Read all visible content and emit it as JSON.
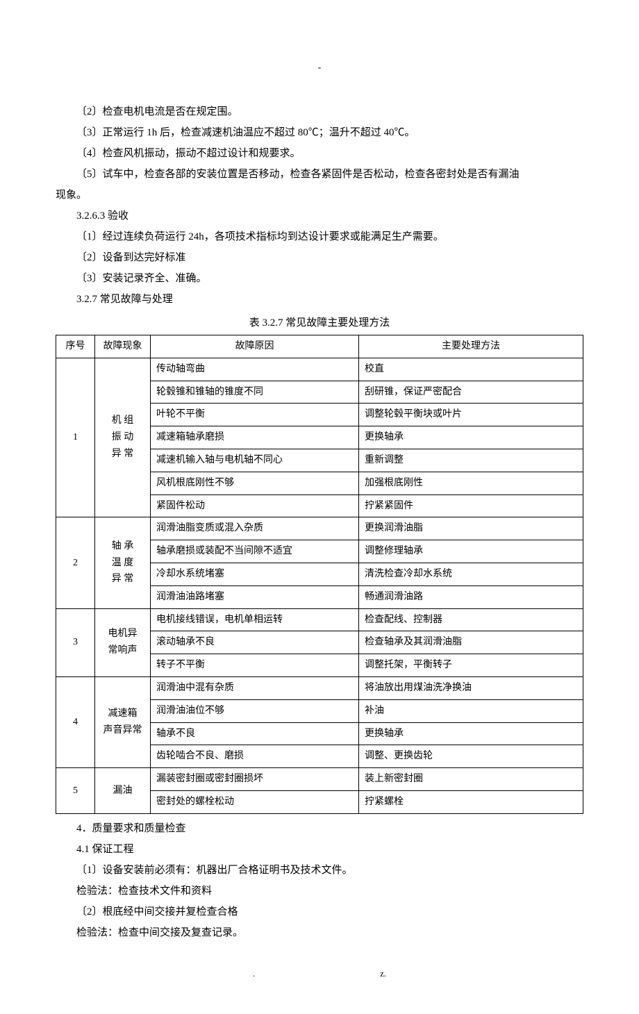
{
  "topMark": "-",
  "preText": [
    "〔2〕检查电机电流是否在规定围。",
    "〔3〕正常运行 1h 后，检查减速机油温应不超过 80℃；温升不超过 40℃。",
    "〔4〕检查风机振动，振动不超过设计和规要求。",
    "〔5〕试车中，检查各部的安装位置是否移动，检查各紧固件是否松动，检查各密封处是否有漏油"
  ],
  "preTextCont": "现象。",
  "sec3263": "3.2.6.3 验收",
  "accept": [
    "〔1〕经过连续负荷运行 24h，各项技术指标均到达设计要求或能满足生产需要。",
    "〔2〕设备到达完好标准",
    "〔3〕安装记录齐全、准确。"
  ],
  "sec327": "3.2.7 常见故障与处理",
  "tableCaption": "表 3.2.7 常见故障主要处理方法",
  "table": {
    "headers": [
      "序号",
      "故障现象",
      "故障原因",
      "主要处理方法"
    ],
    "groups": [
      {
        "seq": "1",
        "phen": [
          "机 组",
          "振 动",
          "异 常"
        ],
        "rows": [
          [
            "传动轴弯曲",
            "校直"
          ],
          [
            "轮毂锥和锥轴的锥度不同",
            "刮研锥，保证严密配合"
          ],
          [
            "叶轮不平衡",
            "调整轮毂平衡块或叶片"
          ],
          [
            "减速箱轴承磨损",
            "更换轴承"
          ],
          [
            "减速机输入轴与电机轴不同心",
            "重新调整"
          ],
          [
            "风机根底刚性不够",
            "加强根底刚性"
          ],
          [
            "紧固件松动",
            "拧紧紧固件"
          ]
        ]
      },
      {
        "seq": "2",
        "phen": [
          "轴 承",
          "温 度",
          "异 常"
        ],
        "rows": [
          [
            "润滑油脂变质或混入杂质",
            "更换润滑油脂"
          ],
          [
            "轴承磨损或装配不当间隙不适宜",
            "调整修理轴承"
          ],
          [
            "冷却水系统堵塞",
            "清洗检查冷却水系统"
          ],
          [
            "润滑油油路堵塞",
            "畅通润滑油路"
          ]
        ]
      },
      {
        "seq": "3",
        "phen": [
          "电机异",
          "常响声"
        ],
        "rows": [
          [
            "电机接线错误，电机单相运转",
            "检查配线、控制器"
          ],
          [
            "滚动轴承不良",
            "检查轴承及其润滑油脂"
          ],
          [
            "转子不平衡",
            "调整托架，平衡转子"
          ]
        ]
      },
      {
        "seq": "4",
        "phen": [
          "减速箱",
          "声音异常"
        ],
        "rows": [
          [
            "润滑油中混有杂质",
            "将油放出用煤油洗净换油"
          ],
          [
            "润滑油油位不够",
            "补油"
          ],
          [
            "轴承不良",
            "更换轴承"
          ],
          [
            "齿轮啮合不良、磨损",
            "调整、更换齿轮"
          ]
        ]
      },
      {
        "seq": "5",
        "phen": [
          "漏油"
        ],
        "rows": [
          [
            "漏装密封圈或密封圈损坏",
            "装上新密封圈"
          ],
          [
            "密封处的螺栓松动",
            "拧紧螺栓"
          ]
        ]
      }
    ]
  },
  "sec4": "4．质量要求和质量检查",
  "sec41": "4.1 保证工程",
  "qc": [
    "〔1〕设备安装前必须有：机器出厂合格证明书及技术文件。",
    "检验法：检查技术文件和资料",
    "〔2〕根底经中间交接并复检查合格",
    "检验法：检查中间交接及复查记录。"
  ],
  "footer": {
    "left": ".",
    "right": "z."
  }
}
